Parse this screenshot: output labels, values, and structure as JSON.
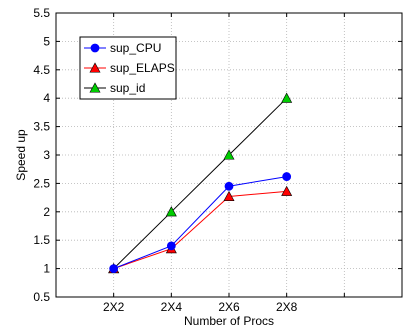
{
  "chart_data": {
    "type": "line",
    "title": "",
    "xlabel": "Number of Procs",
    "ylabel": "Speed up",
    "categories": [
      "2X2",
      "2X4",
      "2X6",
      "2X8"
    ],
    "ylim": [
      0.5,
      5.5
    ],
    "yticks": [
      "0.5",
      "1",
      "1.5",
      "2",
      "2.5",
      "3",
      "3.5",
      "4",
      "4.5",
      "5",
      "5.5"
    ],
    "grid": true,
    "legend": "top-left",
    "series": [
      {
        "name": "sup_CPU",
        "color": "#0000ff",
        "marker": "circle",
        "values": [
          1.0,
          1.4,
          2.45,
          2.62
        ]
      },
      {
        "name": "sup_ELAPS",
        "color": "#ff0000",
        "marker": "triangle",
        "values": [
          1.0,
          1.35,
          2.27,
          2.36
        ]
      },
      {
        "name": "sup_id",
        "color": "#000000",
        "marker": "triangle",
        "marker_color": "#00cc00",
        "values": [
          1.0,
          2.0,
          3.0,
          4.0
        ]
      }
    ]
  }
}
